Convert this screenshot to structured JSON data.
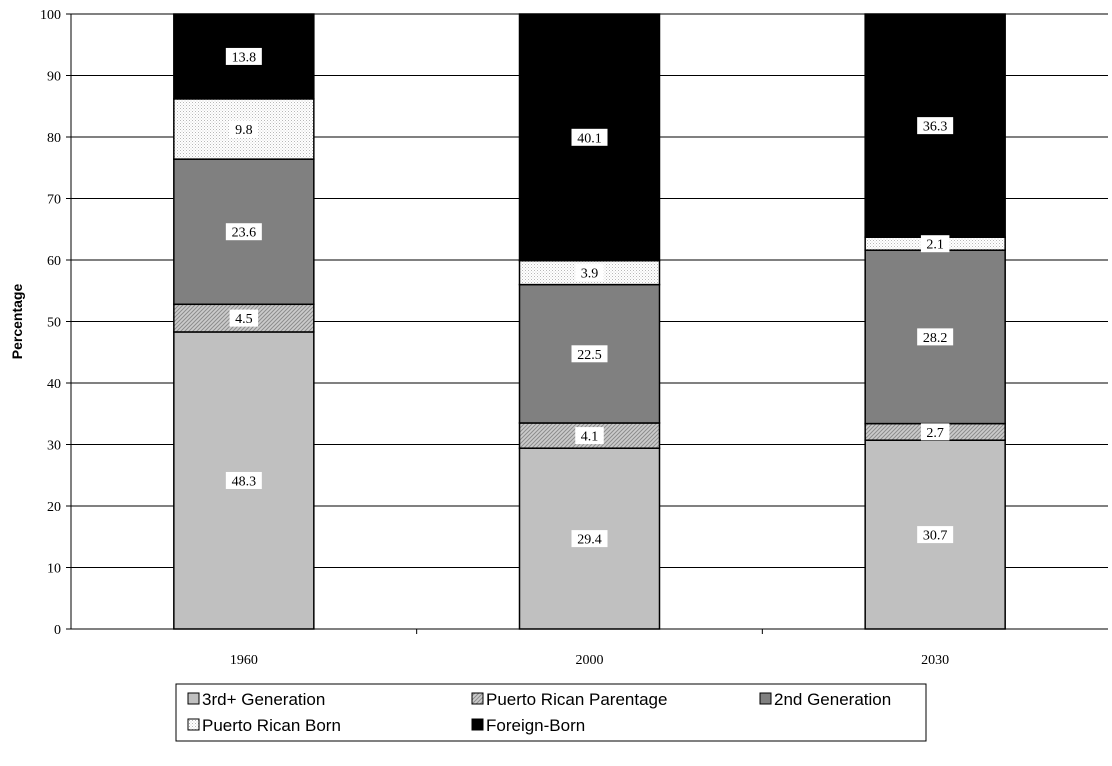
{
  "chart_data": {
    "type": "bar",
    "stacked": true,
    "categories": [
      "1960",
      "2000",
      "2030"
    ],
    "series": [
      {
        "name": "3rd+ Generation",
        "values": [
          48.3,
          29.4,
          30.7
        ],
        "color": "#c0c0c0",
        "pattern": "solid",
        "labels": [
          "48.3",
          "29.4",
          "30.7"
        ]
      },
      {
        "name": "Puerto Rican Parentage",
        "values": [
          4.5,
          4.1,
          2.7
        ],
        "color": "#c8c8c8",
        "pattern": "diagonal-hatch",
        "labels": [
          "4.5",
          "4.1",
          "2.7"
        ]
      },
      {
        "name": "2nd Generation",
        "values": [
          23.6,
          22.5,
          28.2
        ],
        "color": "#808080",
        "pattern": "solid",
        "labels": [
          "23.6",
          "22.5",
          "28.2"
        ]
      },
      {
        "name": "Puerto Rican Born",
        "values": [
          9.8,
          3.9,
          2.1
        ],
        "color": "#f0f0f0",
        "pattern": "fine-dots",
        "labels": [
          "9.8",
          "3.9",
          "2.1"
        ]
      },
      {
        "name": "Foreign-Born",
        "values": [
          13.8,
          40.1,
          36.3
        ],
        "color": "#000000",
        "pattern": "solid",
        "labels": [
          "13.8",
          "40.1",
          "36.3"
        ]
      }
    ],
    "title": "",
    "xlabel": "",
    "ylabel": "Percentage",
    "ylim": [
      0,
      100
    ],
    "yticks": [
      "0",
      "10",
      "20",
      "30",
      "40",
      "50",
      "60",
      "70",
      "80",
      "90",
      "100"
    ],
    "grid": "horizontal",
    "legend": {
      "position": "bottom",
      "columns": 3
    }
  }
}
